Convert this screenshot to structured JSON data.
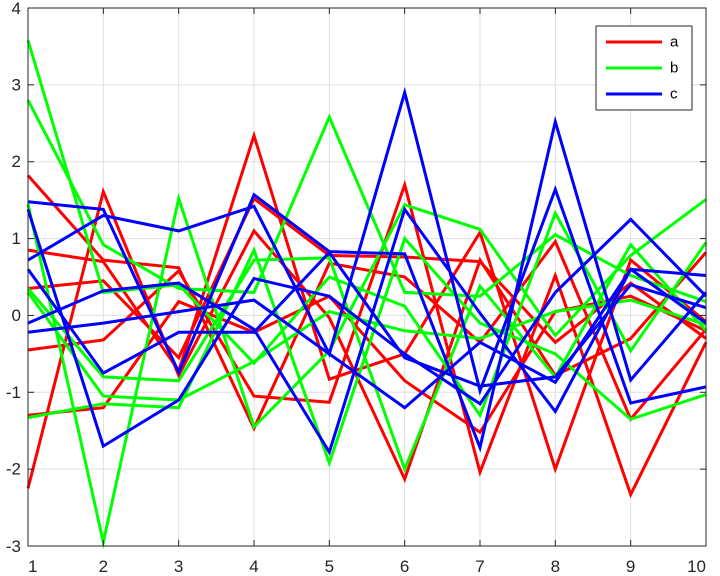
{
  "chart_data": {
    "type": "line",
    "title": "",
    "xlabel": "",
    "ylabel": "",
    "xlim": [
      1,
      10
    ],
    "ylim": [
      -3,
      4
    ],
    "xticks": [
      1,
      2,
      3,
      4,
      5,
      6,
      7,
      8,
      9,
      10
    ],
    "yticks": [
      -3,
      -2,
      -1,
      0,
      1,
      2,
      3,
      4
    ],
    "grid": true,
    "legend": {
      "position": "top-right",
      "entries": [
        {
          "label": "a",
          "color": "#ff0000"
        },
        {
          "label": "b",
          "color": "#00ff00"
        },
        {
          "label": "c",
          "color": "#0000ff"
        }
      ]
    },
    "x": [
      1,
      2,
      3,
      4,
      5,
      6,
      7,
      8,
      9,
      10
    ],
    "series": [
      {
        "group": "a",
        "color": "#ff0000",
        "values": [
          1.82,
          0.72,
          0.62,
          -1.47,
          0.68,
          0.5,
          -0.35,
          0.96,
          -1.35,
          -0.18
        ]
      },
      {
        "group": "a",
        "color": "#ff0000",
        "values": [
          0.85,
          0.7,
          -0.72,
          2.34,
          -0.83,
          -0.5,
          1.08,
          -2.0,
          0.72,
          -0.08
        ]
      },
      {
        "group": "a",
        "color": "#ff0000",
        "values": [
          -0.45,
          -0.32,
          0.58,
          -1.05,
          -1.13,
          1.7,
          -2.04,
          0.52,
          -2.33,
          -0.35
        ]
      },
      {
        "group": "a",
        "color": "#ff0000",
        "values": [
          -2.25,
          1.61,
          -0.78,
          1.1,
          -0.03,
          -2.13,
          0.72,
          -0.78,
          -0.3,
          0.82
        ]
      },
      {
        "group": "a",
        "color": "#ff0000",
        "values": [
          -1.3,
          -1.2,
          0.18,
          -0.22,
          0.25,
          -0.85,
          -1.52,
          0.05,
          0.25,
          -0.2
        ]
      },
      {
        "group": "a",
        "color": "#ff0000",
        "values": [
          0.35,
          0.45,
          -0.55,
          1.52,
          0.78,
          0.76,
          0.7,
          -0.35,
          0.42,
          -0.3
        ]
      },
      {
        "group": "b",
        "color": "#00ff00",
        "values": [
          3.58,
          0.3,
          0.4,
          -0.62,
          0.5,
          0.12,
          -1.3,
          1.33,
          -0.46,
          0.95
        ]
      },
      {
        "group": "b",
        "color": "#00ff00",
        "values": [
          2.8,
          0.92,
          0.35,
          0.3,
          2.58,
          0.3,
          0.25,
          1.05,
          0.52,
          0.18
        ]
      },
      {
        "group": "b",
        "color": "#00ff00",
        "values": [
          1.45,
          -2.95,
          1.52,
          -1.45,
          -0.46,
          1.44,
          1.12,
          -0.26,
          0.78,
          1.51
        ]
      },
      {
        "group": "b",
        "color": "#00ff00",
        "values": [
          -1.33,
          -1.15,
          -1.2,
          0.85,
          -1.92,
          1.0,
          -0.1,
          -0.5,
          -1.35,
          -1.03
        ]
      },
      {
        "group": "b",
        "color": "#00ff00",
        "values": [
          0.35,
          -0.8,
          -0.85,
          0.72,
          0.75,
          -2.0,
          0.38,
          -0.8,
          0.92,
          -0.2
        ]
      },
      {
        "group": "b",
        "color": "#00ff00",
        "values": [
          0.3,
          -1.05,
          -1.1,
          -0.6,
          0.05,
          -0.2,
          -0.3,
          0.05,
          0.2,
          -0.12
        ]
      },
      {
        "group": "c",
        "color": "#0000ff",
        "values": [
          1.48,
          1.38,
          -0.74,
          1.57,
          0.83,
          0.8,
          -1.72,
          2.52,
          -0.84,
          0.3
        ]
      },
      {
        "group": "c",
        "color": "#0000ff",
        "values": [
          0.72,
          1.3,
          1.1,
          1.42,
          -0.5,
          2.9,
          -0.98,
          1.64,
          -1.14,
          -0.93
        ]
      },
      {
        "group": "c",
        "color": "#0000ff",
        "values": [
          1.38,
          -1.7,
          -1.1,
          0.48,
          0.25,
          -0.5,
          -1.15,
          0.3,
          1.25,
          0.25
        ]
      },
      {
        "group": "c",
        "color": "#0000ff",
        "values": [
          -0.1,
          0.32,
          0.42,
          -0.18,
          -1.78,
          1.38,
          0.03,
          -1.25,
          0.6,
          0.52
        ]
      },
      {
        "group": "c",
        "color": "#0000ff",
        "values": [
          -0.22,
          -0.1,
          0.05,
          0.2,
          -0.5,
          -1.2,
          -0.35,
          -0.87,
          0.6,
          -0.1
        ]
      },
      {
        "group": "c",
        "color": "#0000ff",
        "values": [
          0.6,
          -0.75,
          -0.22,
          -0.22,
          0.82,
          -0.55,
          -0.92,
          -0.8,
          0.4,
          0.1
        ]
      }
    ]
  }
}
